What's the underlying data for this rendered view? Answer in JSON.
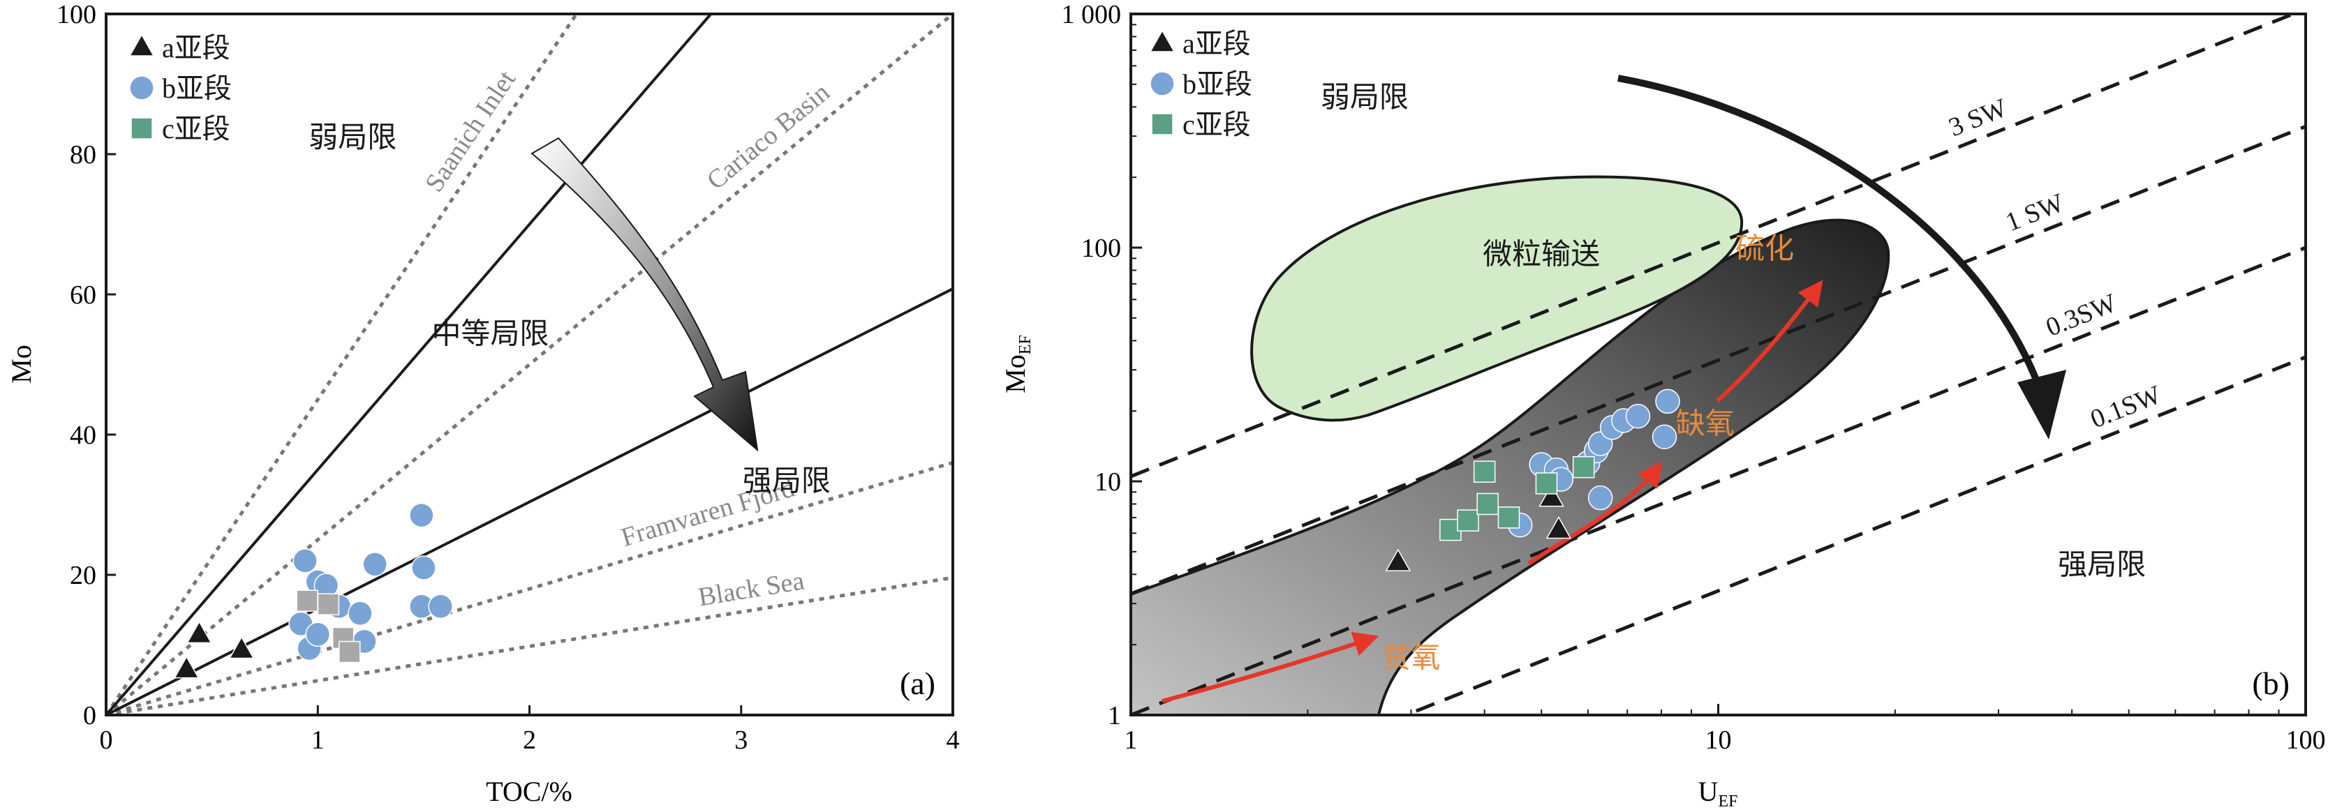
{
  "chart_data": [
    {
      "id": "panel-a",
      "type": "scatter",
      "panel_label": "(a)",
      "xlabel": "TOC/%",
      "ylabel": "Mo",
      "xlim": [
        0,
        4
      ],
      "ylim": [
        0,
        100
      ],
      "x_ticks": [
        0,
        1,
        2,
        3,
        4
      ],
      "x_tick_labels": [
        "0",
        "1",
        "2",
        "3",
        "4"
      ],
      "y_ticks": [
        0,
        20,
        40,
        60,
        80,
        100
      ],
      "y_tick_labels": [
        "0",
        "20",
        "40",
        "60",
        "80",
        "100"
      ],
      "legend_position": "top-left",
      "series": [
        {
          "name": "a亚段",
          "marker": "triangle",
          "color": "#1a1a1a",
          "points": [
            [
              0.38,
              6.5
            ],
            [
              0.44,
              11.5
            ],
            [
              0.64,
              9.3
            ]
          ]
        },
        {
          "name": "b亚段",
          "marker": "circle",
          "color": "#7aa3d6",
          "points": [
            [
              0.92,
              13.0
            ],
            [
              0.94,
              22.0
            ],
            [
              0.96,
              9.5
            ],
            [
              1.0,
              19.0
            ],
            [
              1.0,
              11.5
            ],
            [
              1.04,
              18.5
            ],
            [
              1.1,
              15.5
            ],
            [
              1.2,
              14.5
            ],
            [
              1.22,
              10.5
            ],
            [
              1.27,
              21.5
            ],
            [
              1.49,
              28.5
            ],
            [
              1.5,
              21.0
            ],
            [
              1.49,
              15.5
            ],
            [
              1.58,
              15.5
            ]
          ]
        },
        {
          "name": "c亚段",
          "marker": "square",
          "color": "#5b9f84",
          "points": [
            [
              0.95,
              16.3
            ],
            [
              1.05,
              15.8
            ],
            [
              1.12,
              11.0
            ],
            [
              1.15,
              9.0
            ]
          ],
          "display_color": "#a8a8a8"
        }
      ],
      "reference_lines": [
        {
          "label": "Saanich Inlet",
          "slope": 45,
          "style": "dotted",
          "color": "#777777"
        },
        {
          "label": "Cariaco Basin",
          "slope": 25,
          "style": "dotted",
          "color": "#777777"
        },
        {
          "label": "Framvaren Fjord",
          "slope": 9,
          "style": "dotted",
          "color": "#777777"
        },
        {
          "label": "Black Sea",
          "slope": 4.9,
          "style": "dotted",
          "color": "#777777"
        },
        {
          "label": "",
          "slope": 35,
          "style": "solid",
          "color": "#1a1a1a"
        },
        {
          "label": "",
          "slope": 15.2,
          "style": "solid",
          "color": "#1a1a1a"
        }
      ],
      "region_labels": [
        {
          "text": "弱局限",
          "x": 1.0,
          "y": 81
        },
        {
          "text": "中等局限",
          "x": 1.65,
          "y": 53
        },
        {
          "text": "强局限",
          "x": 3.05,
          "y": 32
        }
      ],
      "arrow": {
        "from": [
          2.05,
          80
        ],
        "to": [
          3.1,
          38
        ]
      }
    },
    {
      "id": "panel-b",
      "type": "scatter",
      "panel_label": "(b)",
      "xlabel": "U",
      "xlabel_sub": "EF",
      "ylabel": "Mo",
      "ylabel_sub": "EF",
      "scale": "log-log",
      "xlim": [
        1,
        100
      ],
      "ylim": [
        1,
        1000
      ],
      "x_ticks": [
        1,
        10,
        100
      ],
      "x_tick_labels": [
        "1",
        "10",
        "100"
      ],
      "y_ticks": [
        1,
        10,
        100,
        1000
      ],
      "y_tick_labels": [
        "1",
        "10",
        "100",
        "1 000"
      ],
      "legend_position": "top-left",
      "series": [
        {
          "name": "a亚段",
          "marker": "triangle",
          "color": "#1a1a1a",
          "points": [
            [
              2.85,
              4.5
            ],
            [
              5.2,
              8.5
            ],
            [
              5.35,
              6.2
            ]
          ]
        },
        {
          "name": "b亚段",
          "marker": "circle",
          "color": "#7aa3d6",
          "points": [
            [
              5.0,
              11.8
            ],
            [
              5.3,
              11.2
            ],
            [
              5.4,
              10.2
            ],
            [
              6.0,
              12.0
            ],
            [
              6.2,
              13.5
            ],
            [
              6.3,
              14.5
            ],
            [
              6.6,
              17.0
            ],
            [
              6.9,
              18.2
            ],
            [
              7.3,
              19.0
            ],
            [
              8.2,
              22.0
            ],
            [
              8.1,
              15.5
            ],
            [
              6.3,
              8.5
            ],
            [
              4.6,
              6.5
            ]
          ]
        },
        {
          "name": "c亚段",
          "marker": "square",
          "color": "#5b9f84",
          "points": [
            [
              3.5,
              6.2
            ],
            [
              3.75,
              6.8
            ],
            [
              4.05,
              8.0
            ],
            [
              4.4,
              7.0
            ],
            [
              4.0,
              11.0
            ],
            [
              5.1,
              9.8
            ],
            [
              5.9,
              11.5
            ]
          ]
        }
      ],
      "reference_lines": [
        {
          "label": "3 SW",
          "style": "dashed",
          "y_at_x1": 10.5,
          "slope_log": 1.0
        },
        {
          "label": "1 SW",
          "style": "dashed",
          "y_at_x1": 3.3,
          "slope_log": 1.0
        },
        {
          "label": "0.3SW",
          "style": "dashed",
          "y_at_x1": 1.0,
          "slope_log": 1.0
        },
        {
          "label": "0.1SW",
          "style": "dashed",
          "y_at_x1": 0.34,
          "slope_log": 1.0
        }
      ],
      "region_labels": [
        {
          "text": "弱局限",
          "x": 2.5,
          "y": 400
        },
        {
          "text": "微粒输送",
          "x": 5.0,
          "y": 85
        },
        {
          "text": "强局限",
          "x": 45,
          "y": 4.0
        },
        {
          "text": "硫化",
          "x": 12,
          "y": 90
        },
        {
          "text": "缺氧",
          "x": 9.5,
          "y": 16
        },
        {
          "text": "贫氧",
          "x": 3.0,
          "y": 1.6
        }
      ],
      "accent_colors": {
        "particulate_shuttle": "#d3ebc9",
        "trend_arrow": "#e63628",
        "trend_label": "#e88a3a"
      }
    }
  ]
}
